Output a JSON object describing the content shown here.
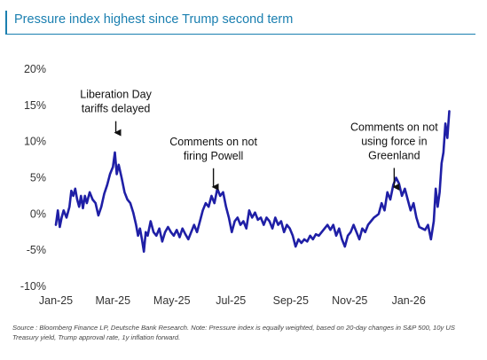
{
  "title": "Pressure index highest since Trump second term",
  "source": "Source : Bloomberg Finance LP, Deutsche Bank Research. Note: Pressure index is equally weighted, based on 20-day changes in S&P 500, 10y US Treasury yield, Trump approval rate, 1y inflation forward.",
  "colors": {
    "line": "#1f1fa6",
    "title": "#1a7fb0",
    "axis": "#555555"
  },
  "chart_data": {
    "type": "line",
    "xlabel": "",
    "ylabel": "",
    "ylim": [
      -10,
      20
    ],
    "xlim": [
      "2025-01-01",
      "2026-03-01"
    ],
    "grid": false,
    "y_ticks": [
      "20%",
      "15%",
      "10%",
      "5%",
      "0%",
      "-5%",
      "-10%"
    ],
    "y_tick_values": [
      20,
      15,
      10,
      5,
      0,
      -5,
      -10
    ],
    "x_ticks": [
      "Jan-25",
      "Mar-25",
      "May-25",
      "Jul-25",
      "Sep-25",
      "Nov-25",
      "Jan-26"
    ],
    "x_tick_values": [
      "2025-01-01",
      "2025-03-01",
      "2025-05-01",
      "2025-07-01",
      "2025-09-01",
      "2025-11-01",
      "2026-01-01"
    ],
    "series": [
      {
        "values": [
          [
            "2025-01-01",
            -1.5
          ],
          [
            "2025-01-03",
            0.5
          ],
          [
            "2025-01-05",
            -1.8
          ],
          [
            "2025-01-07",
            -0.5
          ],
          [
            "2025-01-09",
            0.5
          ],
          [
            "2025-01-12",
            -0.5
          ],
          [
            "2025-01-15",
            1.0
          ],
          [
            "2025-01-17",
            3.2
          ],
          [
            "2025-01-19",
            2.5
          ],
          [
            "2025-01-21",
            3.5
          ],
          [
            "2025-01-23",
            2.0
          ],
          [
            "2025-01-25",
            1.0
          ],
          [
            "2025-01-27",
            2.5
          ],
          [
            "2025-01-29",
            0.8
          ],
          [
            "2025-01-31",
            2.5
          ],
          [
            "2025-02-02",
            1.5
          ],
          [
            "2025-02-05",
            3.0
          ],
          [
            "2025-02-08",
            2.0
          ],
          [
            "2025-02-11",
            1.5
          ],
          [
            "2025-02-14",
            -0.2
          ],
          [
            "2025-02-17",
            1.0
          ],
          [
            "2025-02-20",
            2.8
          ],
          [
            "2025-02-23",
            4.0
          ],
          [
            "2025-02-26",
            5.5
          ],
          [
            "2025-03-01",
            6.5
          ],
          [
            "2025-03-03",
            8.5
          ],
          [
            "2025-03-05",
            5.5
          ],
          [
            "2025-03-07",
            6.8
          ],
          [
            "2025-03-10",
            5.0
          ],
          [
            "2025-03-13",
            3.0
          ],
          [
            "2025-03-16",
            2.0
          ],
          [
            "2025-03-19",
            1.5
          ],
          [
            "2025-03-22",
            0.2
          ],
          [
            "2025-03-25",
            -1.5
          ],
          [
            "2025-03-27",
            -3.0
          ],
          [
            "2025-03-29",
            -2.0
          ],
          [
            "2025-03-31",
            -3.5
          ],
          [
            "2025-04-02",
            -5.2
          ],
          [
            "2025-04-04",
            -2.5
          ],
          [
            "2025-04-06",
            -3.0
          ],
          [
            "2025-04-09",
            -1.0
          ],
          [
            "2025-04-12",
            -2.5
          ],
          [
            "2025-04-15",
            -3.0
          ],
          [
            "2025-04-18",
            -2.0
          ],
          [
            "2025-04-21",
            -3.8
          ],
          [
            "2025-04-24",
            -2.5
          ],
          [
            "2025-04-27",
            -1.8
          ],
          [
            "2025-04-30",
            -2.5
          ],
          [
            "2025-05-03",
            -3.0
          ],
          [
            "2025-05-06",
            -2.2
          ],
          [
            "2025-05-09",
            -3.2
          ],
          [
            "2025-05-12",
            -2.0
          ],
          [
            "2025-05-15",
            -2.8
          ],
          [
            "2025-05-18",
            -3.5
          ],
          [
            "2025-05-21",
            -2.5
          ],
          [
            "2025-05-24",
            -1.5
          ],
          [
            "2025-05-27",
            -2.5
          ],
          [
            "2025-05-30",
            -1.0
          ],
          [
            "2025-06-02",
            0.5
          ],
          [
            "2025-06-05",
            1.5
          ],
          [
            "2025-06-08",
            1.0
          ],
          [
            "2025-06-11",
            2.5
          ],
          [
            "2025-06-14",
            1.5
          ],
          [
            "2025-06-17",
            3.5
          ],
          [
            "2025-06-20",
            2.5
          ],
          [
            "2025-06-23",
            3.0
          ],
          [
            "2025-06-26",
            1.0
          ],
          [
            "2025-06-29",
            -0.5
          ],
          [
            "2025-07-02",
            -2.5
          ],
          [
            "2025-07-05",
            -1.0
          ],
          [
            "2025-07-08",
            -0.5
          ],
          [
            "2025-07-11",
            -1.5
          ],
          [
            "2025-07-14",
            -1.0
          ],
          [
            "2025-07-17",
            -2.0
          ],
          [
            "2025-07-20",
            0.5
          ],
          [
            "2025-07-23",
            -0.5
          ],
          [
            "2025-07-26",
            0.2
          ],
          [
            "2025-07-29",
            -0.8
          ],
          [
            "2025-08-01",
            -0.5
          ],
          [
            "2025-08-04",
            -1.5
          ],
          [
            "2025-08-07",
            -0.5
          ],
          [
            "2025-08-10",
            -1.0
          ],
          [
            "2025-08-13",
            -2.0
          ],
          [
            "2025-08-16",
            -0.5
          ],
          [
            "2025-08-19",
            -1.5
          ],
          [
            "2025-08-22",
            -1.0
          ],
          [
            "2025-08-25",
            -2.5
          ],
          [
            "2025-08-28",
            -1.5
          ],
          [
            "2025-08-31",
            -2.0
          ],
          [
            "2025-09-03",
            -3.0
          ],
          [
            "2025-09-06",
            -4.5
          ],
          [
            "2025-09-09",
            -3.5
          ],
          [
            "2025-09-12",
            -4.0
          ],
          [
            "2025-09-15",
            -3.5
          ],
          [
            "2025-09-18",
            -3.8
          ],
          [
            "2025-09-21",
            -3.0
          ],
          [
            "2025-09-24",
            -3.5
          ],
          [
            "2025-09-27",
            -2.8
          ],
          [
            "2025-09-30",
            -3.0
          ],
          [
            "2025-10-03",
            -2.5
          ],
          [
            "2025-10-06",
            -2.0
          ],
          [
            "2025-10-09",
            -1.5
          ],
          [
            "2025-10-12",
            -2.2
          ],
          [
            "2025-10-15",
            -1.5
          ],
          [
            "2025-10-18",
            -3.0
          ],
          [
            "2025-10-21",
            -2.0
          ],
          [
            "2025-10-24",
            -3.5
          ],
          [
            "2025-10-27",
            -4.5
          ],
          [
            "2025-10-30",
            -3.0
          ],
          [
            "2025-11-02",
            -2.5
          ],
          [
            "2025-11-05",
            -1.5
          ],
          [
            "2025-11-08",
            -2.5
          ],
          [
            "2025-11-11",
            -3.5
          ],
          [
            "2025-11-14",
            -2.0
          ],
          [
            "2025-11-17",
            -2.5
          ],
          [
            "2025-11-20",
            -1.5
          ],
          [
            "2025-11-23",
            -1.0
          ],
          [
            "2025-11-26",
            -0.5
          ],
          [
            "2025-11-29",
            -0.2
          ],
          [
            "2025-12-01",
            0.0
          ],
          [
            "2025-12-04",
            1.5
          ],
          [
            "2025-12-07",
            0.5
          ],
          [
            "2025-12-10",
            3.0
          ],
          [
            "2025-12-13",
            2.0
          ],
          [
            "2025-12-16",
            4.0
          ],
          [
            "2025-12-19",
            5.0
          ],
          [
            "2025-12-22",
            4.2
          ],
          [
            "2025-12-25",
            2.5
          ],
          [
            "2025-12-28",
            3.5
          ],
          [
            "2025-12-31",
            2.0
          ],
          [
            "2026-01-03",
            0.5
          ],
          [
            "2026-01-06",
            1.5
          ],
          [
            "2026-01-09",
            -0.5
          ],
          [
            "2026-01-12",
            -1.8
          ],
          [
            "2026-01-15",
            -2.0
          ],
          [
            "2026-01-18",
            -2.2
          ],
          [
            "2026-01-21",
            -1.5
          ],
          [
            "2026-01-24",
            -3.5
          ],
          [
            "2026-01-27",
            -1.0
          ],
          [
            "2026-01-29",
            3.5
          ],
          [
            "2026-01-31",
            1.0
          ],
          [
            "2026-02-02",
            3.0
          ],
          [
            "2026-02-04",
            7.0
          ],
          [
            "2026-02-06",
            8.5
          ],
          [
            "2026-02-08",
            12.5
          ],
          [
            "2026-02-10",
            10.5
          ],
          [
            "2026-02-12",
            14.2
          ]
        ]
      }
    ],
    "annotations": [
      {
        "lines": [
          "Liberation Day",
          "tariffs delayed"
        ],
        "x": "2025-03-04",
        "y": 16.0,
        "arrow_to": [
          10.5
        ]
      },
      {
        "lines": [
          "Comments on not",
          "firing Powell"
        ],
        "x": "2025-06-13",
        "y": 9.5,
        "arrow_to": [
          3.0
        ]
      },
      {
        "lines": [
          "Comments on not",
          "using force in",
          "Greenland"
        ],
        "x": "2025-12-17",
        "y": 11.5,
        "arrow_to": [
          3.0
        ]
      }
    ]
  }
}
